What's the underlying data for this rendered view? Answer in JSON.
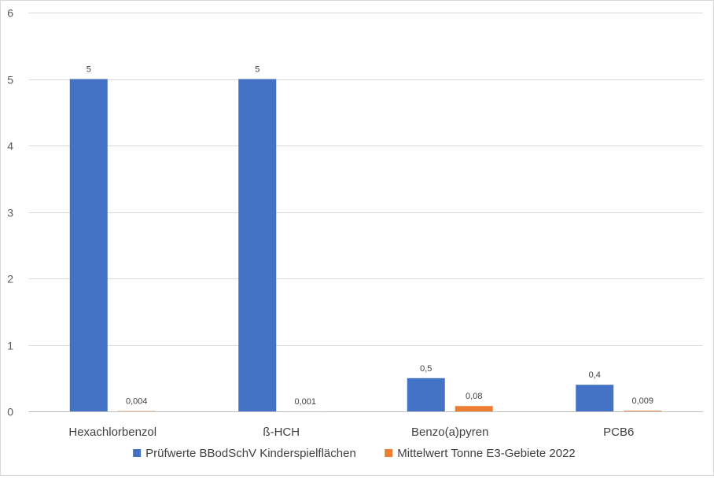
{
  "chart_data": {
    "type": "bar",
    "title": "",
    "xlabel": "",
    "ylabel": "",
    "categories": [
      "Hexachlorbenzol",
      "ß-HCH",
      "Benzo(a)pyren",
      "PCB6"
    ],
    "series": [
      {
        "name": "Prüfwerte BBodSchV Kinderspielflächen",
        "color": "#4472C4",
        "values": [
          5,
          5,
          0.5,
          0.4
        ],
        "labels": [
          "5",
          "5",
          "0,5",
          "0,4"
        ]
      },
      {
        "name": "Mittelwert Tonne E3-Gebiete 2022",
        "color": "#ED7D31",
        "values": [
          0.004,
          0.001,
          0.08,
          0.009
        ],
        "labels": [
          "0,004",
          "0,001",
          "0,08",
          "0,009"
        ]
      }
    ],
    "ylim": [
      0,
      6
    ],
    "yticks": [
      "0",
      "1",
      "2",
      "3",
      "4",
      "5",
      "6"
    ],
    "grid": true,
    "legend": "bottom"
  }
}
